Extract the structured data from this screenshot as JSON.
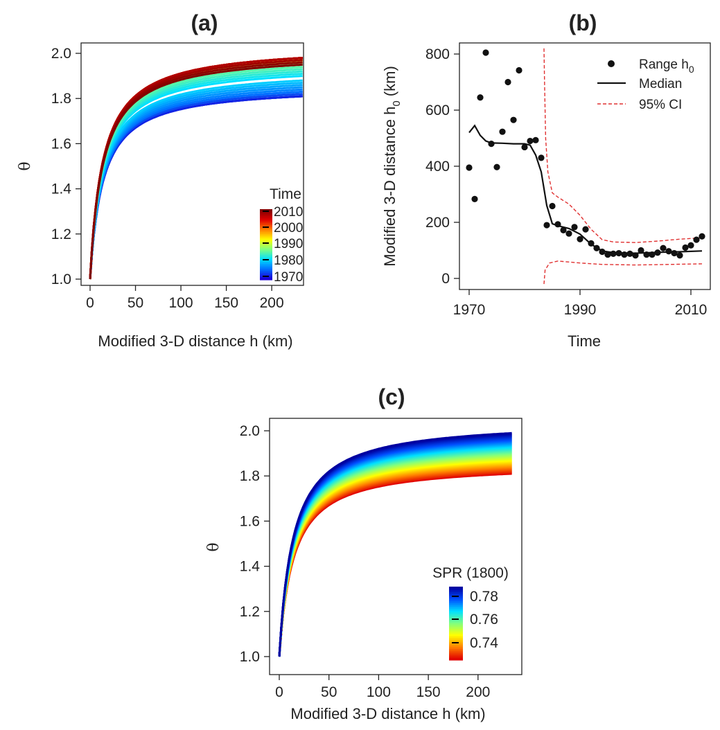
{
  "chart_data": [
    {
      "panel": "(a)",
      "type": "line",
      "xlabel": "Modified 3-D distance h (km)",
      "ylabel": "θ",
      "xlim": [
        0,
        235
      ],
      "ylim": [
        1.0,
        2.0
      ],
      "xticks": [
        "0",
        "50",
        "100",
        "150",
        "200"
      ],
      "yticks": [
        "1.0",
        "1.2",
        "1.4",
        "1.6",
        "1.8",
        "2.0"
      ],
      "colorbar": {
        "title": "Time",
        "labels": [
          "2010",
          "2000",
          "1990",
          "1980",
          "1970"
        ],
        "range": [
          1970,
          2012
        ],
        "colors": [
          "#1a00d8",
          "#0070ff",
          "#00e0ff",
          "#80ff80",
          "#ffff00",
          "#ff8000",
          "#e00000",
          "#800000"
        ]
      },
      "series": [
        {
          "year": 1970,
          "theta_end": 1.81
        },
        {
          "year": 1971,
          "theta_end": 1.81
        },
        {
          "year": 1972,
          "theta_end": 1.81
        },
        {
          "year": 1973,
          "theta_end": 1.82
        },
        {
          "year": 1974,
          "theta_end": 1.82
        },
        {
          "year": 1975,
          "theta_end": 1.83
        },
        {
          "year": 1976,
          "theta_end": 1.83
        },
        {
          "year": 1977,
          "theta_end": 1.84
        },
        {
          "year": 1978,
          "theta_end": 1.85
        },
        {
          "year": 1979,
          "theta_end": 1.86
        },
        {
          "year": 1980,
          "theta_end": 1.87
        },
        {
          "year": 1981,
          "theta_end": 1.88
        },
        {
          "year": 1982,
          "theta_end": 1.9
        },
        {
          "year": 1983,
          "theta_end": 1.91
        },
        {
          "year": 1984,
          "theta_end": 1.92
        },
        {
          "year": 1985,
          "theta_end": 1.93
        },
        {
          "year": 1986,
          "theta_end": 1.94
        },
        {
          "year": 1987,
          "theta_end": 1.95
        },
        {
          "year": 1988,
          "theta_end": 1.95
        },
        {
          "year": 1989,
          "theta_end": 1.96
        },
        {
          "year": 1990,
          "theta_end": 1.96
        },
        {
          "year": 1991,
          "theta_end": 1.97
        },
        {
          "year": 1992,
          "theta_end": 1.97
        },
        {
          "year": 1993,
          "theta_end": 1.97
        },
        {
          "year": 1994,
          "theta_end": 1.98
        },
        {
          "year": 1995,
          "theta_end": 1.98
        },
        {
          "year": 1996,
          "theta_end": 1.98
        },
        {
          "year": 1997,
          "theta_end": 1.98
        },
        {
          "year": 1998,
          "theta_end": 1.98
        },
        {
          "year": 1999,
          "theta_end": 1.98
        },
        {
          "year": 2000,
          "theta_end": 1.98
        },
        {
          "year": 2001,
          "theta_end": 1.98
        },
        {
          "year": 2002,
          "theta_end": 1.98
        },
        {
          "year": 2003,
          "theta_end": 1.98
        },
        {
          "year": 2004,
          "theta_end": 1.98
        },
        {
          "year": 2005,
          "theta_end": 1.98
        },
        {
          "year": 2006,
          "theta_end": 1.98
        },
        {
          "year": 2007,
          "theta_end": 1.98
        },
        {
          "year": 2008,
          "theta_end": 1.98
        },
        {
          "year": 2009,
          "theta_end": 1.98
        },
        {
          "year": 2010,
          "theta_end": 1.97
        },
        {
          "year": 2011,
          "theta_end": 1.96
        },
        {
          "year": 2012,
          "theta_end": 1.95
        }
      ]
    },
    {
      "panel": "(b)",
      "type": "scatter",
      "xlabel": "Time",
      "ylabel": "Modified 3-D distance  h",
      "ylabel_sub": "0",
      "ylabel_tail": " (km)",
      "xlim": [
        1969,
        2013
      ],
      "ylim": [
        0,
        820
      ],
      "xticks": [
        {
          "v": 1970,
          "label": "1970"
        },
        {
          "v": 1990,
          "label": "1990"
        },
        {
          "v": 2010,
          "label": "2010"
        }
      ],
      "yticks": [
        {
          "v": 0,
          "label": "0"
        },
        {
          "v": 200,
          "label": "200"
        },
        {
          "v": 400,
          "label": "400"
        },
        {
          "v": 600,
          "label": "600"
        },
        {
          "v": 800,
          "label": "800"
        }
      ],
      "legend": {
        "range_label": "Range h",
        "range_sub": "0",
        "median_label": "Median",
        "ci_label": "95% CI"
      },
      "points": [
        {
          "x": 1970,
          "y": 395
        },
        {
          "x": 1971,
          "y": 283
        },
        {
          "x": 1972,
          "y": 645
        },
        {
          "x": 1973,
          "y": 805
        },
        {
          "x": 1974,
          "y": 480
        },
        {
          "x": 1975,
          "y": 397
        },
        {
          "x": 1976,
          "y": 523
        },
        {
          "x": 1977,
          "y": 700
        },
        {
          "x": 1978,
          "y": 565
        },
        {
          "x": 1979,
          "y": 742
        },
        {
          "x": 1980,
          "y": 468
        },
        {
          "x": 1981,
          "y": 490
        },
        {
          "x": 1982,
          "y": 493
        },
        {
          "x": 1983,
          "y": 430
        },
        {
          "x": 1984,
          "y": 190
        },
        {
          "x": 1985,
          "y": 258
        },
        {
          "x": 1986,
          "y": 193
        },
        {
          "x": 1987,
          "y": 172
        },
        {
          "x": 1988,
          "y": 160
        },
        {
          "x": 1989,
          "y": 183
        },
        {
          "x": 1990,
          "y": 140
        },
        {
          "x": 1991,
          "y": 175
        },
        {
          "x": 1992,
          "y": 125
        },
        {
          "x": 1993,
          "y": 108
        },
        {
          "x": 1994,
          "y": 95
        },
        {
          "x": 1995,
          "y": 85
        },
        {
          "x": 1996,
          "y": 88
        },
        {
          "x": 1997,
          "y": 90
        },
        {
          "x": 1998,
          "y": 85
        },
        {
          "x": 1999,
          "y": 88
        },
        {
          "x": 2000,
          "y": 82
        },
        {
          "x": 2001,
          "y": 100
        },
        {
          "x": 2002,
          "y": 85
        },
        {
          "x": 2003,
          "y": 85
        },
        {
          "x": 2004,
          "y": 92
        },
        {
          "x": 2005,
          "y": 108
        },
        {
          "x": 2006,
          "y": 97
        },
        {
          "x": 2007,
          "y": 90
        },
        {
          "x": 2008,
          "y": 82
        },
        {
          "x": 2009,
          "y": 110
        },
        {
          "x": 2010,
          "y": 118
        },
        {
          "x": 2011,
          "y": 138
        },
        {
          "x": 2012,
          "y": 150
        }
      ],
      "median": [
        {
          "x": 1970,
          "y": 520
        },
        {
          "x": 1971,
          "y": 545
        },
        {
          "x": 1972,
          "y": 510
        },
        {
          "x": 1973,
          "y": 490
        },
        {
          "x": 1974,
          "y": 483
        },
        {
          "x": 1976,
          "y": 482
        },
        {
          "x": 1978,
          "y": 480
        },
        {
          "x": 1980,
          "y": 480
        },
        {
          "x": 1981,
          "y": 475
        },
        {
          "x": 1982,
          "y": 440
        },
        {
          "x": 1983,
          "y": 380
        },
        {
          "x": 1984,
          "y": 260
        },
        {
          "x": 1985,
          "y": 195
        },
        {
          "x": 1986,
          "y": 188
        },
        {
          "x": 1988,
          "y": 178
        },
        {
          "x": 1990,
          "y": 158
        },
        {
          "x": 1992,
          "y": 122
        },
        {
          "x": 1994,
          "y": 98
        },
        {
          "x": 1996,
          "y": 92
        },
        {
          "x": 2000,
          "y": 90
        },
        {
          "x": 2004,
          "y": 93
        },
        {
          "x": 2008,
          "y": 95
        },
        {
          "x": 2012,
          "y": 98
        }
      ],
      "ci_upper": [
        {
          "x": 1983.5,
          "y": 820
        },
        {
          "x": 1983.6,
          "y": 700
        },
        {
          "x": 1983.8,
          "y": 500
        },
        {
          "x": 1984.2,
          "y": 380
        },
        {
          "x": 1985,
          "y": 305
        },
        {
          "x": 1986,
          "y": 290
        },
        {
          "x": 1988,
          "y": 265
        },
        {
          "x": 1990,
          "y": 225
        },
        {
          "x": 1992,
          "y": 175
        },
        {
          "x": 1994,
          "y": 138
        },
        {
          "x": 1996,
          "y": 130
        },
        {
          "x": 2000,
          "y": 128
        },
        {
          "x": 2004,
          "y": 133
        },
        {
          "x": 2008,
          "y": 140
        },
        {
          "x": 2012,
          "y": 145
        }
      ],
      "ci_lower": [
        {
          "x": 1983.5,
          "y": -20
        },
        {
          "x": 1983.7,
          "y": 30
        },
        {
          "x": 1984.5,
          "y": 55
        },
        {
          "x": 1986,
          "y": 62
        },
        {
          "x": 1990,
          "y": 55
        },
        {
          "x": 1994,
          "y": 50
        },
        {
          "x": 2000,
          "y": 48
        },
        {
          "x": 2006,
          "y": 50
        },
        {
          "x": 2012,
          "y": 52
        }
      ]
    },
    {
      "panel": "(c)",
      "type": "line",
      "xlabel": "Modified 3-D distance h (km)",
      "ylabel": "θ",
      "xlim": [
        0,
        235
      ],
      "ylim": [
        1.0,
        2.0
      ],
      "xticks": [
        "0",
        "50",
        "100",
        "150",
        "200"
      ],
      "yticks": [
        "1.0",
        "1.2",
        "1.4",
        "1.6",
        "1.8",
        "2.0"
      ],
      "colorbar": {
        "title": "SPR (1800)",
        "labels": [
          "0.78",
          "0.76",
          "0.74"
        ],
        "range": [
          0.73,
          0.79
        ],
        "colors": [
          "#0000a0",
          "#0050ff",
          "#00e0ff",
          "#80ff80",
          "#ffff00",
          "#ff8000",
          "#e00000"
        ]
      },
      "theta_end_range": [
        1.81,
        1.99
      ]
    }
  ]
}
